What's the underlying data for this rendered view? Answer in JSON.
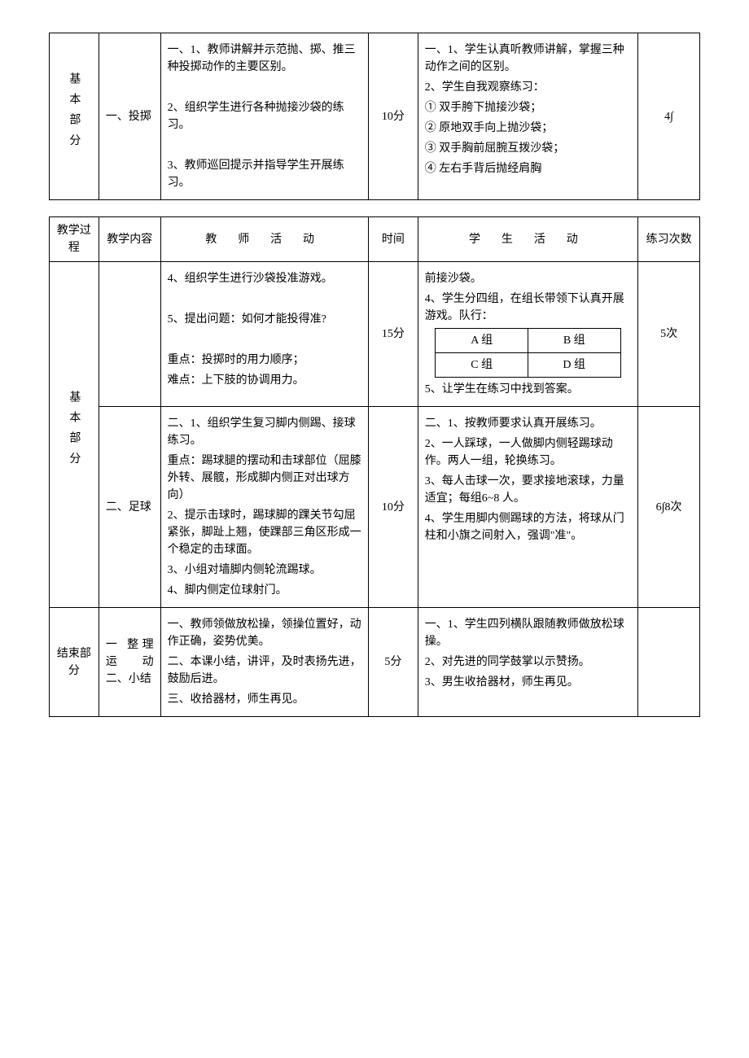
{
  "table1": {
    "row1": {
      "process": "基本部分",
      "content": "一、投掷",
      "teacher": {
        "p1": "一、1、教师讲解并示范抛、掷、推三种投掷动作的主要区别。",
        "p2": "2、组织学生进行各种抛接沙袋的练习。",
        "p3": "3、教师巡回提示并指导学生开展练习。"
      },
      "time": "10分",
      "student": {
        "p1": "一、1、学生认真听教师讲解，掌握三种动作之间的区别。",
        "p2": "2、学生自我观察练习：",
        "li1": "① 双手胯下抛接沙袋；",
        "li2": "② 原地双手向上抛沙袋；",
        "li3": "③ 双手胸前屈腕互拨沙袋；",
        "li4": "④ 左右手背后抛经肩胸"
      },
      "count": "4∫"
    }
  },
  "table2": {
    "headers": {
      "process": "教学过程",
      "content": "教学内容",
      "teacher": "教 师 活 动",
      "time": "时间",
      "student": "学 生 活 动",
      "count": "练习次数"
    },
    "row_basic1": {
      "process": "基本部分",
      "content": "",
      "teacher": {
        "p1": "4、组织学生进行沙袋投准游戏。",
        "p2": "5、提出问题：如何才能投得准?",
        "p3": "重点：投掷时的用力顺序；",
        "p4": "难点：上下肢的协调用力。"
      },
      "time": "15分",
      "student": {
        "p1": "前接沙袋。",
        "p2": "4、学生分四组，在组长带领下认真开展游戏。队行：",
        "grid": {
          "a": "A 组",
          "b": "B 组",
          "c": "C 组",
          "d": "D 组"
        },
        "p3": "5、让学生在练习中找到答案。"
      },
      "count": "5次"
    },
    "row_basic2": {
      "content": "二、足球",
      "teacher": {
        "p1": "二、1、组织学生复习脚内侧踢、接球练习。",
        "p2": "重点：踢球腿的摆动和击球部位（屈膝外转、展髋，形成脚内侧正对出球方向）",
        "p3": "2、提示击球时，踢球脚的踝关节勾屈紧张，脚趾上翘，使踝部三角区形成一个稳定的击球面。",
        "p4": "3、小组对墙脚内侧轮流踢球。",
        "p5": "4、脚内侧定位球射门。"
      },
      "time": "10分",
      "student": {
        "p1": "二、1、按教师要求认真开展练习。",
        "p2": "2、一人踩球，一人做脚内侧轻踢球动作。两人一组，轮换练习。",
        "p3": "3、每人击球一次，要求接地滚球，力量适宜；每组6~8 人。",
        "p4": "4、学生用脚内侧踢球的方法，将球从门柱和小旗之间射入，强调\"准\"。"
      },
      "count": "6∫8次"
    },
    "row_end": {
      "process": "结束部分",
      "content": "一 整理 运动 二、小结",
      "teacher": {
        "p1": "一、教师领做放松操，领操位置好，动作正确，姿势优美。",
        "p2": "二、本课小结，讲评，及时表扬先进，鼓励后进。",
        "p3": "三、收拾器材，师生再见。"
      },
      "time": "5分",
      "student": {
        "p1": "一、1、学生四列横队跟随教师做放松球操。",
        "p2": "2、对先进的同学鼓掌以示赞扬。",
        "p3": "3、男生收拾器材，师生再见。"
      },
      "count": ""
    }
  }
}
